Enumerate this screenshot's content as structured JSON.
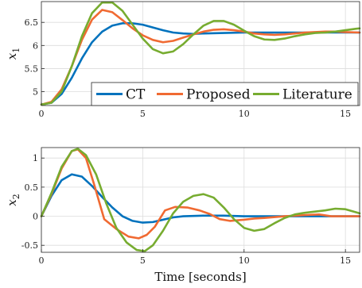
{
  "chart_data": [
    {
      "type": "line",
      "ylabel": "x",
      "ylabel_sub": "1",
      "xlabel": "",
      "xlim": [
        0,
        15.7
      ],
      "ylim": [
        4.7,
        6.95
      ],
      "xticks": [
        0,
        5,
        10,
        15
      ],
      "xtick_labels": [
        "0",
        "5",
        "10",
        "15"
      ],
      "yticks": [
        5,
        5.5,
        6,
        6.5
      ],
      "ytick_labels": [
        "5",
        "5.5",
        "6",
        "6.5"
      ],
      "grid": true,
      "legend_position": "bottom-right",
      "series": [
        {
          "name": "CT",
          "color": "#0072BD",
          "x": [
            0,
            0.5,
            1,
            1.5,
            2,
            2.5,
            3,
            3.5,
            4,
            4.5,
            5,
            5.5,
            6,
            6.5,
            7,
            7.5,
            8,
            9,
            10,
            11,
            12,
            13,
            14,
            15,
            15.7
          ],
          "y": [
            4.72,
            4.76,
            4.95,
            5.3,
            5.72,
            6.07,
            6.3,
            6.43,
            6.48,
            6.48,
            6.45,
            6.39,
            6.33,
            6.28,
            6.26,
            6.25,
            6.26,
            6.27,
            6.28,
            6.28,
            6.28,
            6.28,
            6.28,
            6.28,
            6.28
          ]
        },
        {
          "name": "Proposed",
          "color": "#F06A32",
          "x": [
            0,
            0.5,
            1,
            1.5,
            2,
            2.5,
            3,
            3.5,
            4,
            4.5,
            5,
            5.5,
            6,
            6.5,
            7,
            7.5,
            8,
            8.5,
            9,
            9.5,
            10,
            10.5,
            11,
            11.5,
            12,
            12.5,
            13,
            13.5,
            14,
            14.5,
            15,
            15.7
          ],
          "y": [
            4.72,
            4.78,
            5.05,
            5.55,
            6.12,
            6.56,
            6.77,
            6.72,
            6.55,
            6.37,
            6.22,
            6.12,
            6.07,
            6.1,
            6.17,
            6.24,
            6.3,
            6.34,
            6.35,
            6.33,
            6.3,
            6.26,
            6.24,
            6.23,
            6.24,
            6.26,
            6.28,
            6.29,
            6.3,
            6.3,
            6.29,
            6.28
          ]
        },
        {
          "name": "Literature",
          "color": "#77AC30",
          "x": [
            0,
            0.5,
            1,
            1.5,
            2,
            2.5,
            3,
            3.5,
            4,
            4.5,
            5,
            5.5,
            6,
            6.5,
            7,
            7.5,
            8,
            8.5,
            9,
            9.5,
            10,
            10.5,
            11,
            11.5,
            12,
            12.5,
            13,
            13.5,
            14,
            14.5,
            15,
            15.5,
            15.7
          ],
          "y": [
            4.72,
            4.76,
            5.0,
            5.55,
            6.2,
            6.7,
            6.93,
            6.93,
            6.75,
            6.45,
            6.15,
            5.92,
            5.83,
            5.87,
            6.03,
            6.24,
            6.43,
            6.53,
            6.53,
            6.45,
            6.32,
            6.2,
            6.13,
            6.12,
            6.15,
            6.2,
            6.24,
            6.27,
            6.28,
            6.3,
            6.33,
            6.36,
            6.37
          ]
        }
      ]
    },
    {
      "type": "line",
      "ylabel": "x",
      "ylabel_sub": "2",
      "xlabel": "Time [seconds]",
      "xlim": [
        0,
        15.7
      ],
      "ylim": [
        -0.62,
        1.18
      ],
      "xticks": [
        0,
        5,
        10,
        15
      ],
      "xtick_labels": [
        "0",
        "5",
        "10",
        "15"
      ],
      "yticks": [
        -0.5,
        0,
        0.5,
        1
      ],
      "ytick_labels": [
        "-0.5",
        "0",
        "0.5",
        "1"
      ],
      "grid": true,
      "series": [
        {
          "name": "CT",
          "color": "#0072BD",
          "x": [
            0,
            0.5,
            1,
            1.5,
            2,
            2.5,
            3,
            3.5,
            4,
            4.5,
            5,
            5.5,
            6,
            6.5,
            7,
            8,
            9,
            10,
            11,
            12,
            13,
            14,
            15,
            15.7
          ],
          "y": [
            0,
            0.35,
            0.62,
            0.72,
            0.68,
            0.52,
            0.33,
            0.15,
            0.0,
            -0.08,
            -0.11,
            -0.1,
            -0.06,
            -0.02,
            0.0,
            0.01,
            0.01,
            0.0,
            0.0,
            0.0,
            0.0,
            0.0,
            0.0,
            0.0
          ]
        },
        {
          "name": "Proposed",
          "color": "#F06A32",
          "x": [
            0,
            0.5,
            1,
            1.5,
            1.8,
            2.2,
            2.6,
            3.1,
            3.7,
            4.3,
            4.8,
            5.2,
            5.6,
            6.1,
            6.6,
            7.2,
            7.8,
            8.3,
            8.8,
            9.3,
            10,
            10.5,
            11,
            12,
            13,
            13.7,
            14.3,
            15,
            15.7
          ],
          "y": [
            0,
            0.38,
            0.82,
            1.12,
            1.15,
            1.0,
            0.55,
            -0.05,
            -0.22,
            -0.35,
            -0.38,
            -0.32,
            -0.18,
            0.1,
            0.16,
            0.15,
            0.1,
            0.04,
            -0.05,
            -0.08,
            -0.06,
            -0.04,
            -0.03,
            0.0,
            0.02,
            0.03,
            0.0,
            0.0,
            0.0
          ]
        },
        {
          "name": "Literature",
          "color": "#77AC30",
          "x": [
            0,
            0.5,
            1,
            1.5,
            1.8,
            2.2,
            2.7,
            3.2,
            3.7,
            4.2,
            4.7,
            5.1,
            5.5,
            6,
            6.5,
            7,
            7.5,
            8,
            8.5,
            9,
            9.5,
            10,
            10.5,
            11,
            11.5,
            12,
            12.5,
            13,
            13.5,
            14,
            14.5,
            15,
            15.5,
            15.7
          ],
          "y": [
            0,
            0.4,
            0.85,
            1.12,
            1.16,
            1.05,
            0.72,
            0.22,
            -0.2,
            -0.45,
            -0.58,
            -0.6,
            -0.5,
            -0.25,
            0.05,
            0.25,
            0.35,
            0.38,
            0.32,
            0.15,
            -0.05,
            -0.2,
            -0.25,
            -0.22,
            -0.12,
            -0.03,
            0.03,
            0.06,
            0.08,
            0.1,
            0.13,
            0.12,
            0.07,
            0.05
          ]
        }
      ]
    }
  ]
}
